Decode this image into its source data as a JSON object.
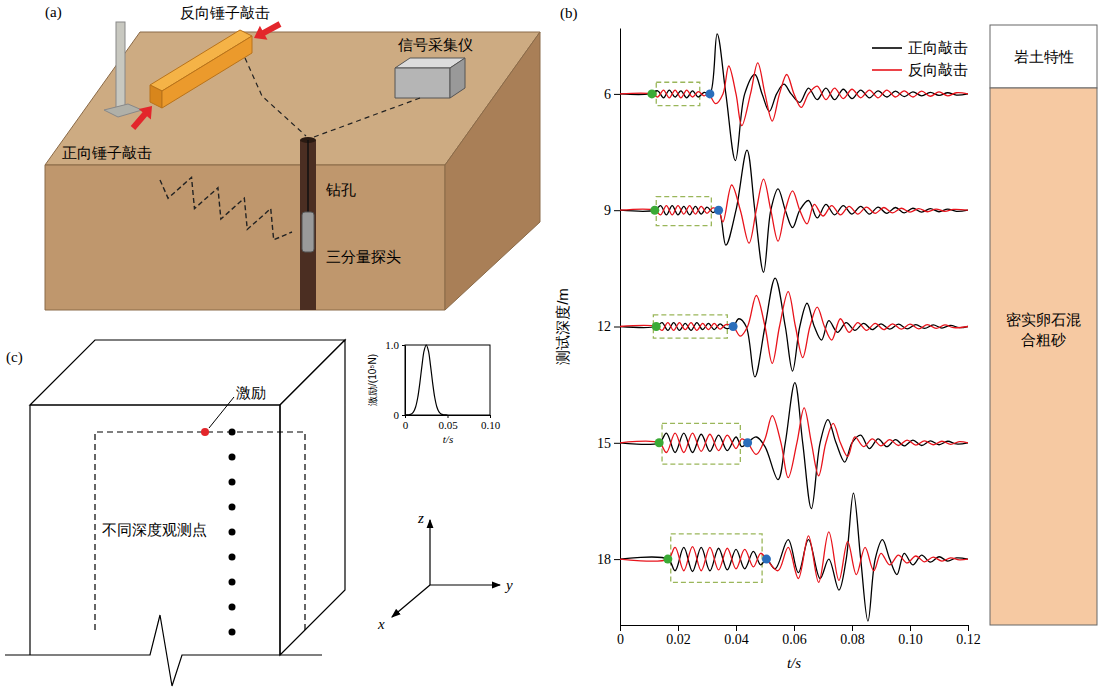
{
  "panel_a": {
    "label": "(a)",
    "reverse_hit": "反向锤子敲击",
    "forward_hit": "正向锤子敲击",
    "acquisition": "信号采集仪",
    "borehole": "钻孔",
    "probe": "三分量探头"
  },
  "chart_data": [
    {
      "type": "line",
      "label": "(b)",
      "xlabel": "t/s",
      "ylabel": "测试深度/m",
      "xlim": [
        0,
        0.12
      ],
      "xticks": [
        0,
        0.02,
        0.04,
        0.06,
        0.08,
        {
          "value": 0.1,
          "label": "0.10"
        },
        0.12
      ],
      "ylim": [
        19.7,
        4.3
      ],
      "yticks": [
        6,
        9,
        12,
        15,
        18
      ],
      "legend": "upper right",
      "series": [
        {
          "type": "rect",
          "color": "#9ab65a",
          "line_style": "dashed",
          "x": [
            [
              0.0125,
              0.0275
            ],
            [
              0.0125,
              0.0315
            ],
            [
              0.0115,
              0.037
            ],
            [
              0.0145,
              0.0415
            ],
            [
              0.0175,
              0.049
            ]
          ],
          "values": [
            [
              5.7,
              6.3
            ],
            [
              8.65,
              9.4
            ],
            [
              11.7,
              12.3
            ],
            [
              14.5,
              15.55
            ],
            [
              17.35,
              18.6
            ]
          ]
        },
        {
          "name": "正向敲击",
          "color": "#000000",
          "x": [
            0,
            0.01,
            0.013,
            0.015,
            0.017,
            0.019,
            0.021,
            0.023,
            0.025,
            0.027,
            0.029,
            0.031,
            0.0335,
            0.0365,
            0.0398,
            0.043,
            0.0465,
            0.049,
            0.0515,
            0.054,
            0.0565,
            0.059,
            0.062,
            0.065,
            0.068,
            0.071,
            0.074,
            0.077,
            0.08,
            0.083,
            0.086,
            0.089,
            0.092,
            0.095,
            0.098,
            0.101,
            0.104,
            0.107,
            0.11,
            0.113,
            0.116,
            0.12,
            null,
            0,
            0.012,
            0.014,
            0.016,
            0.018,
            0.02,
            0.022,
            0.024,
            0.026,
            0.028,
            0.03,
            0.032,
            0.034,
            0.0365,
            0.04,
            0.0438,
            0.0465,
            0.0495,
            0.052,
            0.0545,
            0.057,
            0.0595,
            0.062,
            0.065,
            0.068,
            0.071,
            0.074,
            0.077,
            0.08,
            0.083,
            0.086,
            0.089,
            0.092,
            0.095,
            0.098,
            0.101,
            0.104,
            0.107,
            0.11,
            0.113,
            0.116,
            0.12,
            null,
            0,
            0.0125,
            0.0145,
            0.0165,
            0.0185,
            0.0205,
            0.0225,
            0.0245,
            0.0265,
            0.0285,
            0.0305,
            0.0325,
            0.0345,
            0.0365,
            0.039,
            0.041,
            0.0435,
            0.0465,
            0.05,
            0.0535,
            0.057,
            0.0595,
            0.062,
            0.0645,
            0.067,
            0.0695,
            0.072,
            0.075,
            0.078,
            0.081,
            0.084,
            0.087,
            0.09,
            0.093,
            0.096,
            0.099,
            0.102,
            0.105,
            0.108,
            0.111,
            0.114,
            0.117,
            0.12,
            null,
            0,
            0.0135,
            0.016,
            0.019,
            0.022,
            0.025,
            0.028,
            0.031,
            0.034,
            0.037,
            0.04,
            0.042,
            0.044,
            0.047,
            0.05,
            0.0545,
            0.057,
            0.0603,
            0.063,
            0.066,
            0.069,
            0.0717,
            0.0745,
            0.0775,
            0.08,
            0.083,
            0.086,
            0.089,
            0.092,
            0.095,
            0.098,
            0.101,
            0.104,
            0.107,
            0.11,
            0.113,
            0.116,
            0.12,
            null,
            0,
            0.0165,
            0.019,
            0.022,
            0.025,
            0.028,
            0.031,
            0.034,
            0.037,
            0.04,
            0.043,
            0.046,
            0.0485,
            0.0505,
            0.0535,
            0.058,
            0.0615,
            0.065,
            0.069,
            0.072,
            0.0755,
            0.078,
            0.0805,
            0.083,
            0.0855,
            0.088,
            0.0905,
            0.093,
            0.0955,
            0.098,
            0.101,
            0.104,
            0.107,
            0.11,
            0.113,
            0.116,
            0.12
          ],
          "values": [
            6,
            6,
            5.92,
            6.1,
            5.9,
            6.08,
            5.92,
            6.1,
            5.92,
            6.08,
            5.96,
            6,
            4.45,
            6,
            7.72,
            6,
            5.5,
            6,
            6.45,
            6,
            5.75,
            6,
            6.22,
            5.85,
            6.15,
            5.85,
            6.15,
            5.88,
            6.12,
            5.9,
            6.1,
            5.92,
            6.08,
            5.93,
            6.07,
            5.95,
            6.05,
            5.96,
            6.04,
            5.97,
            6.03,
            6,
            null,
            9,
            9,
            8.88,
            9.12,
            8.88,
            9.12,
            8.9,
            9.12,
            8.9,
            9.1,
            8.92,
            9.06,
            9,
            9.9,
            9,
            7.45,
            9,
            10.6,
            9,
            8.45,
            9,
            9.45,
            9,
            8.75,
            9.2,
            8.85,
            9.12,
            8.88,
            9.1,
            8.9,
            9.1,
            8.92,
            9.08,
            8.93,
            9.07,
            8.95,
            9.05,
            8.96,
            9.04,
            8.97,
            9.03,
            9,
            null,
            12,
            12,
            11.9,
            12.1,
            11.9,
            12.1,
            11.92,
            12.1,
            11.9,
            12.08,
            11.92,
            12.08,
            11.93,
            12.05,
            12,
            11.8,
            12,
            13.3,
            12,
            10.75,
            12,
            13.15,
            12,
            11.4,
            12,
            12.35,
            11.85,
            12.15,
            11.9,
            12.1,
            11.92,
            12.08,
            11.93,
            12.07,
            11.94,
            12.06,
            11.95,
            12.05,
            11.96,
            12.04,
            11.97,
            12.03,
            12,
            null,
            15,
            15,
            14.75,
            15.25,
            14.75,
            15.25,
            14.78,
            15.22,
            14.8,
            15.2,
            14.85,
            15.1,
            15,
            14.85,
            15.1,
            15.95,
            15,
            13.45,
            15,
            16.7,
            15,
            14.4,
            15,
            15.5,
            15,
            14.8,
            15.15,
            14.9,
            15.1,
            14.92,
            15.08,
            14.93,
            15.07,
            14.95,
            15.05,
            14.96,
            15.03,
            15,
            null,
            18,
            18,
            18.3,
            17.7,
            18.32,
            17.7,
            18.3,
            17.72,
            18.28,
            17.75,
            18.25,
            17.8,
            18.15,
            18,
            18.25,
            17.5,
            18.35,
            17.5,
            18.5,
            18,
            18.8,
            18,
            16.3,
            18,
            19.6,
            18,
            17.5,
            18,
            18.4,
            17.85,
            18.15,
            17.9,
            18.08,
            17.94,
            18.05,
            17.97,
            18
          ]
        },
        {
          "name": "反向敲击",
          "color": "#e8141c",
          "x": [
            0,
            0.011,
            0.013,
            0.015,
            0.017,
            0.019,
            0.021,
            0.023,
            0.025,
            0.027,
            0.029,
            0.0305,
            0.033,
            0.0355,
            0.0375,
            0.04,
            0.042,
            0.045,
            0.0475,
            0.05,
            0.0525,
            0.055,
            0.0575,
            0.06,
            0.0625,
            0.065,
            0.068,
            0.071,
            0.074,
            0.077,
            0.08,
            0.083,
            0.086,
            0.089,
            0.092,
            0.095,
            0.098,
            0.101,
            0.104,
            0.107,
            0.11,
            0.113,
            0.116,
            0.12,
            null,
            0,
            0.012,
            0.014,
            0.016,
            0.018,
            0.02,
            0.022,
            0.024,
            0.026,
            0.028,
            0.03,
            0.032,
            0.034,
            0.0355,
            0.0385,
            0.0415,
            0.0445,
            0.047,
            0.0495,
            0.052,
            0.0545,
            0.057,
            0.0595,
            0.062,
            0.0645,
            0.067,
            0.07,
            0.073,
            0.076,
            0.079,
            0.082,
            0.085,
            0.088,
            0.091,
            0.094,
            0.097,
            0.1,
            0.103,
            0.106,
            0.109,
            0.112,
            0.115,
            0.12,
            null,
            0,
            0.0125,
            0.0145,
            0.0165,
            0.0185,
            0.0205,
            0.0225,
            0.0245,
            0.0265,
            0.0285,
            0.0305,
            0.0325,
            0.0345,
            0.0365,
            0.039,
            0.0415,
            0.044,
            0.047,
            0.05,
            0.0525,
            0.055,
            0.058,
            0.0605,
            0.063,
            0.0655,
            0.068,
            0.0705,
            0.073,
            0.076,
            0.079,
            0.082,
            0.085,
            0.088,
            0.091,
            0.094,
            0.097,
            0.1,
            0.103,
            0.106,
            0.109,
            0.112,
            0.115,
            0.12,
            null,
            0,
            0.0135,
            0.016,
            0.019,
            0.022,
            0.025,
            0.028,
            0.031,
            0.034,
            0.037,
            0.04,
            0.042,
            0.044,
            0.047,
            0.05,
            0.0525,
            0.0555,
            0.058,
            0.061,
            0.0635,
            0.066,
            0.0685,
            0.071,
            0.0735,
            0.076,
            0.0785,
            0.081,
            0.084,
            0.087,
            0.09,
            0.093,
            0.096,
            0.099,
            0.102,
            0.105,
            0.108,
            0.111,
            0.114,
            0.117,
            0.12,
            null,
            0,
            0.0165,
            0.019,
            0.022,
            0.025,
            0.028,
            0.031,
            0.034,
            0.037,
            0.04,
            0.043,
            0.046,
            0.0485,
            0.0505,
            0.0545,
            0.058,
            0.0615,
            0.065,
            0.0685,
            0.072,
            0.0755,
            0.0785,
            0.0815,
            0.0845,
            0.0875,
            0.09,
            0.093,
            0.096,
            0.099,
            0.102,
            0.105,
            0.108,
            0.111,
            0.114,
            0.117,
            0.12
          ],
          "values": [
            6,
            6,
            6.08,
            5.9,
            6.1,
            5.9,
            6.1,
            5.9,
            6.08,
            5.94,
            6.05,
            6,
            6.25,
            6,
            5.28,
            6,
            6.82,
            6,
            5.2,
            6,
            6.7,
            6,
            5.5,
            6,
            6.35,
            6,
            5.8,
            6.15,
            5.85,
            6.12,
            5.88,
            6.1,
            5.9,
            6.1,
            5.9,
            6.08,
            5.92,
            6.08,
            5.93,
            6.06,
            5.95,
            6.05,
            5.97,
            6,
            null,
            9,
            9,
            9.12,
            8.88,
            9.12,
            8.88,
            9.1,
            8.88,
            9.1,
            8.9,
            9.08,
            8.94,
            9,
            9.3,
            8.35,
            9,
            9.85,
            9,
            8.2,
            9,
            9.8,
            9,
            8.5,
            9,
            9.35,
            8.85,
            9.15,
            8.88,
            9.12,
            8.9,
            9.1,
            8.92,
            9.08,
            8.93,
            9.07,
            8.95,
            9.05,
            8.96,
            9.04,
            8.97,
            9.03,
            8.98,
            9,
            null,
            12,
            12,
            12.1,
            11.9,
            12.1,
            11.9,
            12.08,
            11.9,
            12.1,
            11.92,
            12.08,
            11.92,
            12.07,
            11.95,
            12,
            12.25,
            12,
            11.2,
            12,
            12.95,
            12,
            11.1,
            12,
            12.8,
            12,
            11.5,
            12,
            12.35,
            11.8,
            12.15,
            11.9,
            12.1,
            11.92,
            12.08,
            11.93,
            12.07,
            11.94,
            12.06,
            11.95,
            12.05,
            11.96,
            12.03,
            12,
            null,
            15,
            15,
            15.25,
            14.75,
            15.25,
            14.75,
            15.22,
            14.78,
            15.2,
            14.8,
            15.15,
            14.9,
            15,
            15.3,
            14.9,
            14.3,
            15,
            15.9,
            15,
            14.1,
            15,
            15.85,
            15,
            14.5,
            15,
            15.35,
            14.85,
            15.1,
            14.9,
            15.08,
            14.92,
            15.07,
            14.93,
            15.06,
            14.95,
            15.05,
            14.96,
            15.04,
            14.97,
            15,
            null,
            18,
            18,
            17.7,
            18.3,
            17.68,
            18.3,
            17.7,
            18.28,
            17.72,
            18.25,
            17.75,
            18.2,
            17.85,
            18,
            18.3,
            17.7,
            18.5,
            17.4,
            18.6,
            17.3,
            18.55,
            17.55,
            18.4,
            17.7,
            18.3,
            17.85,
            18.15,
            17.9,
            18.1,
            17.92,
            18.07,
            17.95,
            18.05,
            17.97,
            18.02,
            18
          ]
        },
        {
          "type": "scatter",
          "marker": "circle",
          "color": "#3aaa35",
          "x": [
            0.011,
            0.012,
            0.0125,
            0.0135,
            0.0165
          ],
          "values": [
            6,
            9,
            12,
            15,
            18
          ]
        },
        {
          "type": "scatter",
          "marker": "circle",
          "color": "#2a6ebb",
          "x": [
            0.031,
            0.034,
            0.039,
            0.044,
            0.0505
          ],
          "values": [
            6,
            9,
            12,
            15,
            18
          ]
        }
      ]
    },
    {
      "type": "line",
      "xlabel": "t/s",
      "ylabel": "激励/(10⁵N)",
      "xlim": [
        0,
        0.1
      ],
      "xticks": [
        0,
        0.05,
        {
          "value": 0.1,
          "label": "0.10"
        }
      ],
      "ylim": [
        0,
        1
      ],
      "yticks": [
        0,
        {
          "value": 1,
          "label": "1.0"
        }
      ],
      "series": [
        {
          "color": "#000000",
          "x": [
            0,
            0.0025,
            0.005,
            0.0075,
            0.01,
            0.0125,
            0.015,
            0.0175,
            0.02,
            0.0225,
            0.025,
            0.0275,
            0.03,
            0.0325,
            0.035,
            0.0375,
            0.04,
            0.0425,
            0.045,
            0.0475,
            0.05
          ],
          "values": [
            0,
            0.001,
            0.004,
            0.014,
            0.045,
            0.115,
            0.25,
            0.46,
            0.71,
            0.92,
            1,
            0.92,
            0.71,
            0.46,
            0.25,
            0.115,
            0.045,
            0.014,
            0.004,
            0.001,
            0
          ]
        }
      ]
    }
  ],
  "soil_column": {
    "header": "岩土特性",
    "layer": "密实卵石混合粗砂"
  },
  "panel_c": {
    "label": "(c)",
    "excitation": "激励",
    "observation_points": "不同深度观测点",
    "axis_x": "x",
    "axis_y": "y",
    "axis_z": "z"
  }
}
